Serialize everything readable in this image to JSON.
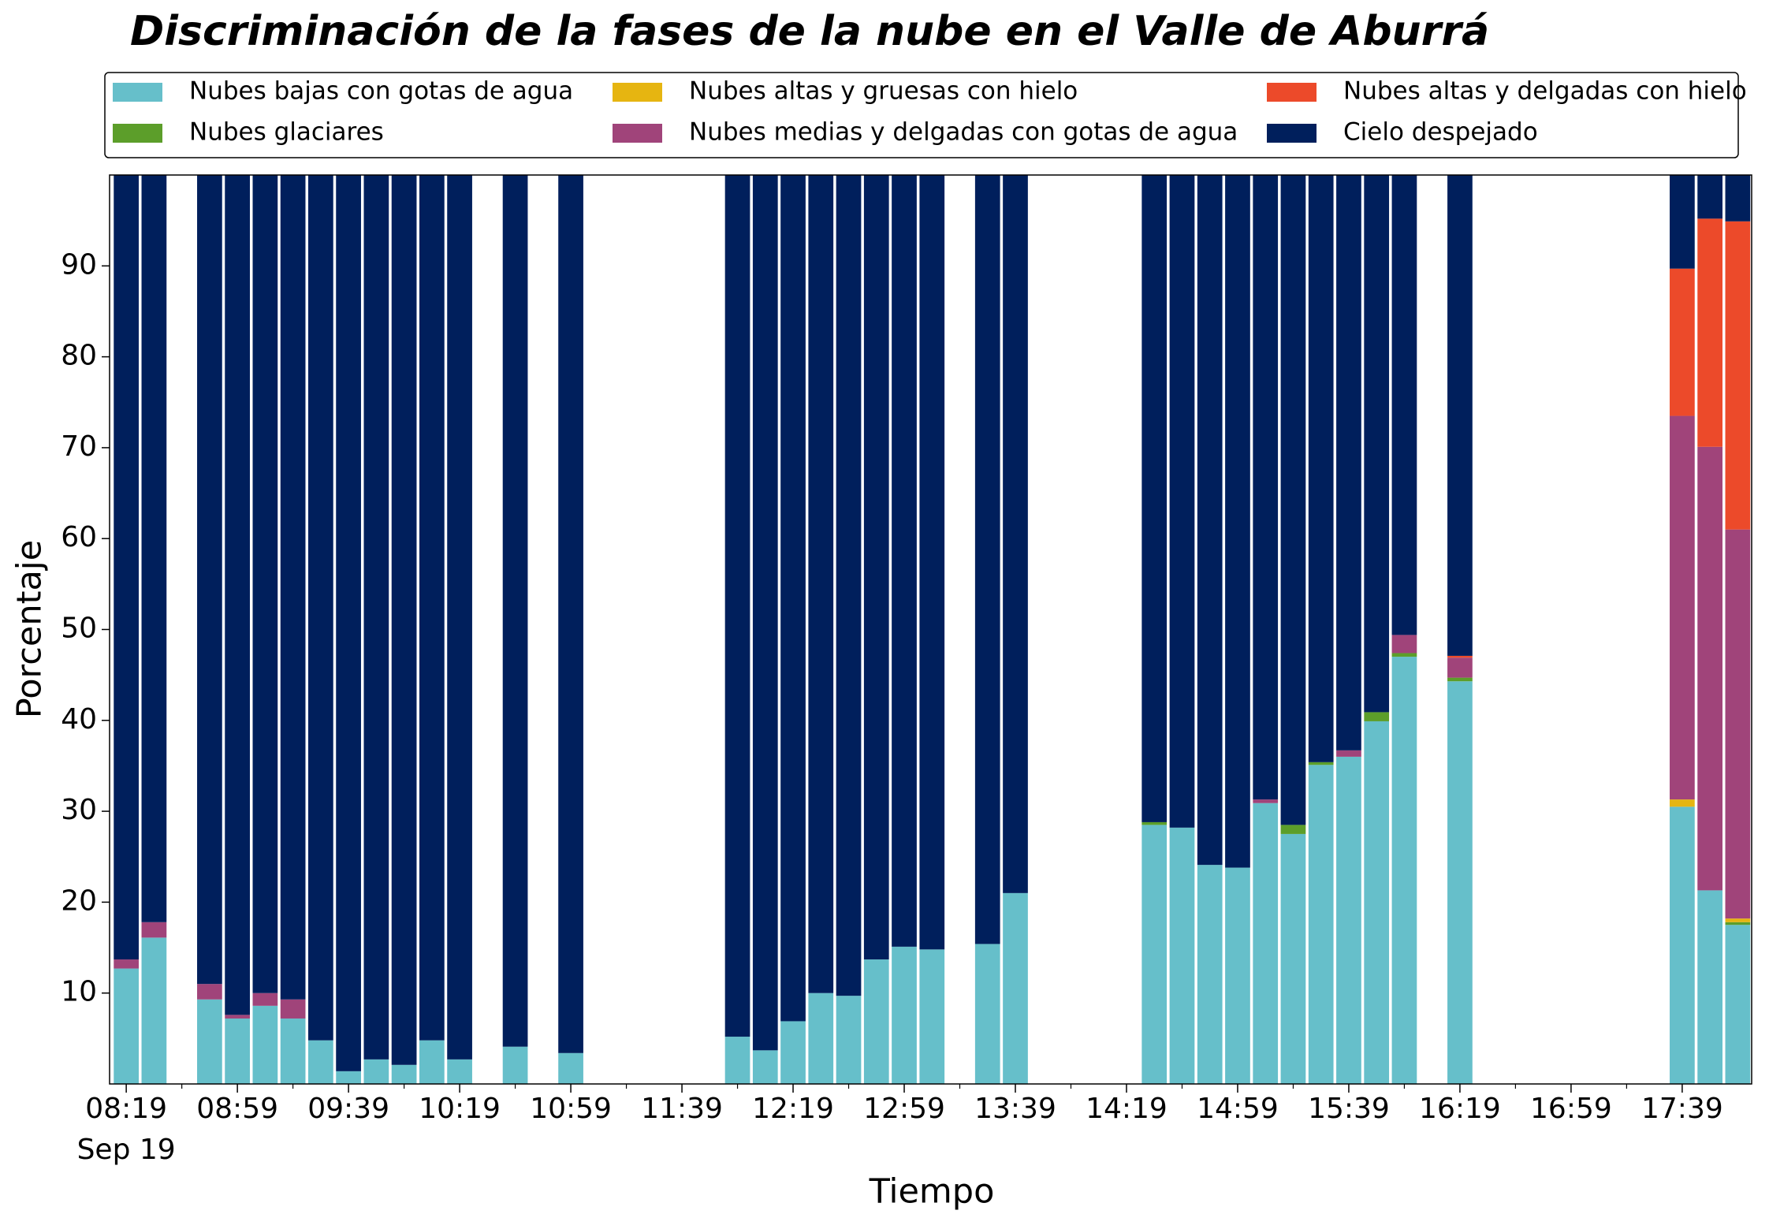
{
  "chart_data": {
    "type": "stacked_bar",
    "title": "Discriminación de la fases de la nube en el Valle de Aburrá",
    "xlabel": "Tiempo",
    "ylabel": "Porcentaje",
    "x": [
      "08:19",
      "08:29",
      "08:49",
      "08:59",
      "09:09",
      "09:19",
      "09:29",
      "09:39",
      "09:49",
      "09:59",
      "10:09",
      "10:19",
      "10:39",
      "10:59",
      "11:59",
      "12:09",
      "12:19",
      "12:29",
      "12:39",
      "12:49",
      "12:59",
      "13:09",
      "13:29",
      "13:39",
      "14:29",
      "14:39",
      "14:49",
      "14:59",
      "15:09",
      "15:19",
      "15:29",
      "15:39",
      "15:49",
      "15:59",
      "16:19",
      "17:39",
      "17:49",
      "17:59"
    ],
    "xlim": [
      "08:13",
      "18:04"
    ],
    "xticks": [
      "08:19",
      "08:59",
      "09:39",
      "10:19",
      "10:59",
      "11:39",
      "12:19",
      "12:59",
      "13:39",
      "14:19",
      "14:59",
      "15:39",
      "16:19",
      "16:59",
      "17:39"
    ],
    "xtick_date": "Sep 19",
    "ylim": [
      0,
      100
    ],
    "yticks": [
      10,
      20,
      30,
      40,
      50,
      60,
      70,
      80,
      90
    ],
    "legend": "top",
    "series": [
      {
        "name": "Nubes bajas con gotas de agua",
        "color": "#66bfca",
        "values": [
          12.7,
          16.1,
          9.3,
          7.2,
          8.6,
          7.2,
          4.8,
          1.4,
          2.7,
          2.1,
          4.8,
          2.7,
          4.1,
          3.4,
          5.2,
          3.7,
          6.9,
          10.0,
          9.7,
          13.7,
          15.1,
          14.8,
          15.4,
          21.0,
          28.5,
          28.2,
          24.1,
          23.8,
          30.9,
          27.5,
          35.1,
          36.0,
          39.9,
          47.0,
          44.3,
          30.5,
          21.3,
          17.5
        ]
      },
      {
        "name": "Nubes glaciares",
        "color": "#5c9e2a",
        "values": [
          0,
          0,
          0,
          0,
          0,
          0,
          0,
          0,
          0,
          0,
          0,
          0,
          0,
          0,
          0,
          0,
          0,
          0,
          0,
          0,
          0,
          0,
          0,
          0,
          0.3,
          0,
          0,
          0,
          0,
          1.0,
          0.3,
          0,
          1.0,
          0.4,
          0.4,
          0,
          0,
          0.3
        ]
      },
      {
        "name": "Nubes altas y gruesas con hielo",
        "color": "#e6b511",
        "values": [
          0,
          0,
          0,
          0,
          0,
          0,
          0,
          0,
          0,
          0,
          0,
          0,
          0,
          0,
          0,
          0,
          0,
          0,
          0,
          0,
          0,
          0,
          0,
          0,
          0,
          0,
          0,
          0,
          0,
          0,
          0,
          0,
          0,
          0,
          0,
          0.8,
          0,
          0.4
        ]
      },
      {
        "name": "Nubes medias y delgadas con gotas de agua",
        "color": "#a0447a",
        "values": [
          1.0,
          1.7,
          1.7,
          0.4,
          1.4,
          2.1,
          0,
          0,
          0,
          0,
          0,
          0,
          0,
          0,
          0,
          0,
          0,
          0,
          0,
          0,
          0,
          0,
          0,
          0,
          0,
          0,
          0,
          0,
          0.4,
          0,
          0,
          0.7,
          0,
          2.0,
          2.2,
          42.2,
          48.8,
          42.8
        ]
      },
      {
        "name": "Nubes altas y delgadas con hielo",
        "color": "#ec4a2a",
        "values": [
          0,
          0,
          0,
          0,
          0,
          0,
          0,
          0,
          0,
          0,
          0,
          0,
          0,
          0,
          0,
          0,
          0,
          0,
          0,
          0,
          0,
          0,
          0,
          0,
          0,
          0,
          0,
          0,
          0,
          0,
          0,
          0,
          0,
          0,
          0.2,
          16.2,
          25.1,
          33.9
        ]
      },
      {
        "name": "Cielo despejado",
        "color": "#001f5c",
        "values": [
          86.3,
          82.2,
          89.0,
          92.4,
          90.0,
          90.7,
          95.2,
          98.6,
          97.3,
          97.9,
          95.2,
          97.3,
          95.9,
          96.6,
          94.8,
          96.3,
          93.1,
          90.0,
          90.3,
          86.3,
          84.9,
          85.2,
          84.6,
          79.0,
          71.2,
          71.8,
          75.9,
          76.2,
          68.7,
          71.5,
          64.6,
          63.3,
          59.1,
          50.6,
          52.9,
          10.3,
          4.8,
          5.1
        ]
      }
    ]
  }
}
